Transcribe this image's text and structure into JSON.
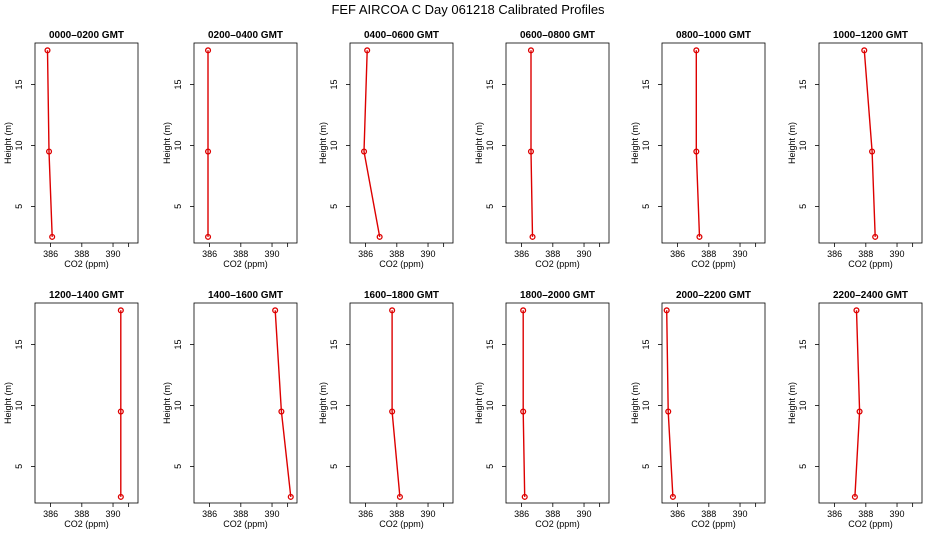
{
  "title": "FEF AIRCOA C  Day 061218  Calibrated Profiles",
  "colors": {
    "line": "#dd0000",
    "axis": "#000000",
    "background": "#ffffff"
  },
  "chart_data": [
    {
      "type": "line",
      "title": "0000–0200 GMT",
      "xlabel": "CO2 (ppm)",
      "ylabel": "Height (m)",
      "xlim": [
        385.0,
        391.6
      ],
      "ylim": [
        2.0,
        18.4
      ],
      "xticks": [
        "386",
        "388",
        "390"
      ],
      "yticks": [
        "5",
        "10",
        "15"
      ],
      "x": [
        385.8,
        385.9,
        386.1
      ],
      "y": [
        17.8,
        9.5,
        2.5
      ]
    },
    {
      "type": "line",
      "title": "0200–0400 GMT",
      "xlabel": "CO2 (ppm)",
      "ylabel": "Height (m)",
      "xlim": [
        385.0,
        391.6
      ],
      "ylim": [
        2.0,
        18.4
      ],
      "xticks": [
        "386",
        "388",
        "390"
      ],
      "yticks": [
        "5",
        "10",
        "15"
      ],
      "x": [
        385.9,
        385.9,
        385.9
      ],
      "y": [
        17.8,
        9.5,
        2.5
      ]
    },
    {
      "type": "line",
      "title": "0400–0600 GMT",
      "xlabel": "CO2 (ppm)",
      "ylabel": "Height (m)",
      "xlim": [
        385.0,
        391.6
      ],
      "ylim": [
        2.0,
        18.4
      ],
      "xticks": [
        "386",
        "388",
        "390"
      ],
      "yticks": [
        "5",
        "10",
        "15"
      ],
      "x": [
        386.1,
        385.9,
        386.9
      ],
      "y": [
        17.8,
        9.5,
        2.5
      ]
    },
    {
      "type": "line",
      "title": "0600–0800 GMT",
      "xlabel": "CO2 (ppm)",
      "ylabel": "Height (m)",
      "xlim": [
        385.0,
        391.6
      ],
      "ylim": [
        2.0,
        18.4
      ],
      "xticks": [
        "386",
        "388",
        "390"
      ],
      "yticks": [
        "5",
        "10",
        "15"
      ],
      "x": [
        386.6,
        386.6,
        386.7
      ],
      "y": [
        17.8,
        9.5,
        2.5
      ]
    },
    {
      "type": "line",
      "title": "0800–1000 GMT",
      "xlabel": "CO2 (ppm)",
      "ylabel": "Height (m)",
      "xlim": [
        385.0,
        391.6
      ],
      "ylim": [
        2.0,
        18.4
      ],
      "xticks": [
        "386",
        "388",
        "390"
      ],
      "yticks": [
        "5",
        "10",
        "15"
      ],
      "x": [
        387.2,
        387.2,
        387.4
      ],
      "y": [
        17.8,
        9.5,
        2.5
      ]
    },
    {
      "type": "line",
      "title": "1000–1200 GMT",
      "xlabel": "CO2 (ppm)",
      "ylabel": "Height (m)",
      "xlim": [
        385.0,
        391.6
      ],
      "ylim": [
        2.0,
        18.4
      ],
      "xticks": [
        "386",
        "388",
        "390"
      ],
      "yticks": [
        "5",
        "10",
        "15"
      ],
      "x": [
        387.9,
        388.4,
        388.6
      ],
      "y": [
        17.8,
        9.5,
        2.5
      ]
    },
    {
      "type": "line",
      "title": "1200–1400 GMT",
      "xlabel": "CO2 (ppm)",
      "ylabel": "Height (m)",
      "xlim": [
        385.0,
        391.6
      ],
      "ylim": [
        2.0,
        18.4
      ],
      "xticks": [
        "386",
        "388",
        "390"
      ],
      "yticks": [
        "5",
        "10",
        "15"
      ],
      "x": [
        390.5,
        390.5,
        390.5
      ],
      "y": [
        17.8,
        9.5,
        2.5
      ]
    },
    {
      "type": "line",
      "title": "1400–1600 GMT",
      "xlabel": "CO2 (ppm)",
      "ylabel": "Height (m)",
      "xlim": [
        385.0,
        391.6
      ],
      "ylim": [
        2.0,
        18.4
      ],
      "xticks": [
        "386",
        "388",
        "390"
      ],
      "yticks": [
        "5",
        "10",
        "15"
      ],
      "x": [
        390.2,
        390.6,
        391.2
      ],
      "y": [
        17.8,
        9.5,
        2.5
      ]
    },
    {
      "type": "line",
      "title": "1600–1800 GMT",
      "xlabel": "CO2 (ppm)",
      "ylabel": "Height (m)",
      "xlim": [
        385.0,
        391.6
      ],
      "ylim": [
        2.0,
        18.4
      ],
      "xticks": [
        "386",
        "388",
        "390"
      ],
      "yticks": [
        "5",
        "10",
        "15"
      ],
      "x": [
        387.7,
        387.7,
        388.2
      ],
      "y": [
        17.8,
        9.5,
        2.5
      ]
    },
    {
      "type": "line",
      "title": "1800–2000 GMT",
      "xlabel": "CO2 (ppm)",
      "ylabel": "Height (m)",
      "xlim": [
        385.0,
        391.6
      ],
      "ylim": [
        2.0,
        18.4
      ],
      "xticks": [
        "386",
        "388",
        "390"
      ],
      "yticks": [
        "5",
        "10",
        "15"
      ],
      "x": [
        386.1,
        386.1,
        386.2
      ],
      "y": [
        17.8,
        9.5,
        2.5
      ]
    },
    {
      "type": "line",
      "title": "2000–2200 GMT",
      "xlabel": "CO2 (ppm)",
      "ylabel": "Height (m)",
      "xlim": [
        385.0,
        391.6
      ],
      "ylim": [
        2.0,
        18.4
      ],
      "xticks": [
        "386",
        "388",
        "390"
      ],
      "yticks": [
        "5",
        "10",
        "15"
      ],
      "x": [
        385.3,
        385.4,
        385.7
      ],
      "y": [
        17.8,
        9.5,
        2.5
      ]
    },
    {
      "type": "line",
      "title": "2200–2400 GMT",
      "xlabel": "CO2 (ppm)",
      "ylabel": "Height (m)",
      "xlim": [
        385.0,
        391.6
      ],
      "ylim": [
        2.0,
        18.4
      ],
      "xticks": [
        "386",
        "388",
        "390"
      ],
      "yticks": [
        "5",
        "10",
        "15"
      ],
      "x": [
        387.4,
        387.6,
        387.3
      ],
      "y": [
        17.8,
        9.5,
        2.5
      ]
    }
  ]
}
